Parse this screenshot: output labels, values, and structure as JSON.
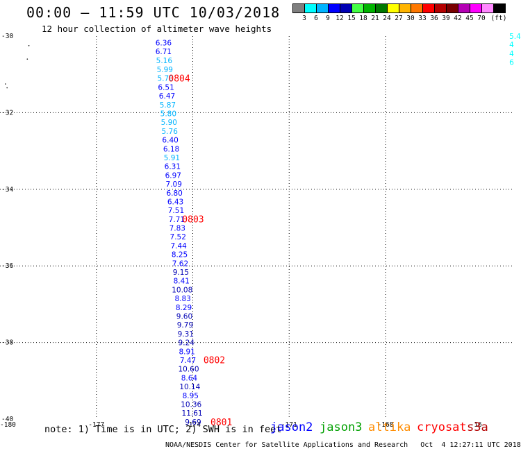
{
  "header": {
    "title": "00:00 – 11:59 UTC 10/03/2018",
    "subtitle": "12 hour collection of altimeter wave heights"
  },
  "colorbar": {
    "colors": [
      "#7f7f7f",
      "#00ffff",
      "#00b4ff",
      "#0000ff",
      "#0000b4",
      "#44ff44",
      "#00b400",
      "#007800",
      "#ffff00",
      "#ffb400",
      "#ff7800",
      "#ff0000",
      "#b40000",
      "#780000",
      "#b400b4",
      "#ff00ff",
      "#ff88ff",
      "#000000"
    ],
    "labels": [
      "3",
      "6",
      "9",
      "12",
      "15",
      "18",
      "21",
      "24",
      "27",
      "30",
      "33",
      "36",
      "39",
      "42",
      "45",
      "70",
      "(ft)"
    ]
  },
  "axes": {
    "x_ticks": [
      "-180",
      "-177",
      "-174",
      "-171",
      "-168",
      "-16"
    ],
    "y_ticks": [
      "-30",
      "-32",
      "-34",
      "-36",
      "-38",
      "-40"
    ]
  },
  "chart_data": {
    "type": "scatter",
    "xlabel": "",
    "ylabel": "",
    "xlim": [
      -180,
      -164
    ],
    "ylim": [
      -40,
      -30
    ],
    "points": [
      {
        "lon": -174.91,
        "lat": -30.17,
        "swh": "6.36"
      },
      {
        "lon": -174.91,
        "lat": -30.4,
        "swh": "6.71"
      },
      {
        "lon": -174.89,
        "lat": -30.63,
        "swh": "5.16"
      },
      {
        "lon": -174.87,
        "lat": -30.87,
        "swh": "5.99"
      },
      {
        "lon": -174.85,
        "lat": -31.1,
        "swh": "5.70"
      },
      {
        "lon": -174.83,
        "lat": -31.33,
        "swh": "6.51"
      },
      {
        "lon": -174.8,
        "lat": -31.56,
        "swh": "6.47"
      },
      {
        "lon": -174.78,
        "lat": -31.79,
        "swh": "5.87"
      },
      {
        "lon": -174.76,
        "lat": -32.02,
        "swh": "5.80"
      },
      {
        "lon": -174.74,
        "lat": -32.25,
        "swh": "5.90"
      },
      {
        "lon": -174.72,
        "lat": -32.48,
        "swh": "5.76"
      },
      {
        "lon": -174.7,
        "lat": -32.71,
        "swh": "6.40"
      },
      {
        "lon": -174.67,
        "lat": -32.94,
        "swh": "6.18"
      },
      {
        "lon": -174.65,
        "lat": -33.17,
        "swh": "5.91"
      },
      {
        "lon": -174.63,
        "lat": -33.4,
        "swh": "6.31"
      },
      {
        "lon": -174.61,
        "lat": -33.63,
        "swh": "6.97"
      },
      {
        "lon": -174.59,
        "lat": -33.86,
        "swh": "7.09"
      },
      {
        "lon": -174.57,
        "lat": -34.09,
        "swh": "6.80"
      },
      {
        "lon": -174.54,
        "lat": -34.32,
        "swh": "6.43"
      },
      {
        "lon": -174.52,
        "lat": -34.55,
        "swh": "7.51"
      },
      {
        "lon": -174.5,
        "lat": -34.78,
        "swh": "7.71"
      },
      {
        "lon": -174.48,
        "lat": -35.01,
        "swh": "7.83"
      },
      {
        "lon": -174.46,
        "lat": -35.24,
        "swh": "7.52"
      },
      {
        "lon": -174.44,
        "lat": -35.47,
        "swh": "7.44"
      },
      {
        "lon": -174.41,
        "lat": -35.7,
        "swh": "8.25"
      },
      {
        "lon": -174.39,
        "lat": -35.93,
        "swh": "7.62"
      },
      {
        "lon": -174.37,
        "lat": -36.16,
        "swh": "9.15"
      },
      {
        "lon": -174.35,
        "lat": -36.39,
        "swh": "8.41"
      },
      {
        "lon": -174.33,
        "lat": -36.62,
        "swh": "10.08"
      },
      {
        "lon": -174.31,
        "lat": -36.85,
        "swh": "8.83"
      },
      {
        "lon": -174.28,
        "lat": -37.08,
        "swh": "8.29"
      },
      {
        "lon": -174.26,
        "lat": -37.31,
        "swh": "9.60"
      },
      {
        "lon": -174.24,
        "lat": -37.54,
        "swh": "9.79"
      },
      {
        "lon": -174.22,
        "lat": -37.77,
        "swh": "9.31"
      },
      {
        "lon": -174.2,
        "lat": -38.0,
        "swh": "9.24"
      },
      {
        "lon": -174.18,
        "lat": -38.23,
        "swh": "8.91"
      },
      {
        "lon": -174.15,
        "lat": -38.46,
        "swh": "7.47"
      },
      {
        "lon": -174.13,
        "lat": -38.69,
        "swh": "10.60"
      },
      {
        "lon": -174.11,
        "lat": -38.92,
        "swh": "8.64"
      },
      {
        "lon": -174.09,
        "lat": -39.15,
        "swh": "10.14"
      },
      {
        "lon": -174.07,
        "lat": -39.38,
        "swh": "8.95"
      },
      {
        "lon": -174.05,
        "lat": -39.61,
        "swh": "10.36"
      },
      {
        "lon": -174.02,
        "lat": -39.84,
        "swh": "11.61"
      },
      {
        "lon": -173.99,
        "lat": -40.07,
        "swh": "9.69"
      }
    ],
    "pass_times": [
      {
        "lon": -174.42,
        "lat": -31.1,
        "label": "0804"
      },
      {
        "lon": -173.99,
        "lat": -34.77,
        "label": "0803"
      },
      {
        "lon": -173.33,
        "lat": -38.45,
        "label": "0802"
      },
      {
        "lon": -173.11,
        "lat": -40.07,
        "label": "0801"
      }
    ],
    "partial_edge_labels": [
      "5.4",
      "4",
      "4",
      "6"
    ]
  },
  "footer": {
    "note": "note: 1) Time is in UTC; 2) SWH is in feet",
    "satellites": [
      {
        "name": "jason2",
        "color": "#0000ff"
      },
      {
        "name": "jason3",
        "color": "#00a000"
      },
      {
        "name": "altika",
        "color": "#ff8c00"
      },
      {
        "name": "cryosat",
        "color": "#ff0000"
      },
      {
        "name": "s3a",
        "color": "#b40000"
      }
    ],
    "credit": "NOAA/NESDIS Center for Satellite Applications and Research   Oct  4 12:27:11 UTC 2018"
  }
}
